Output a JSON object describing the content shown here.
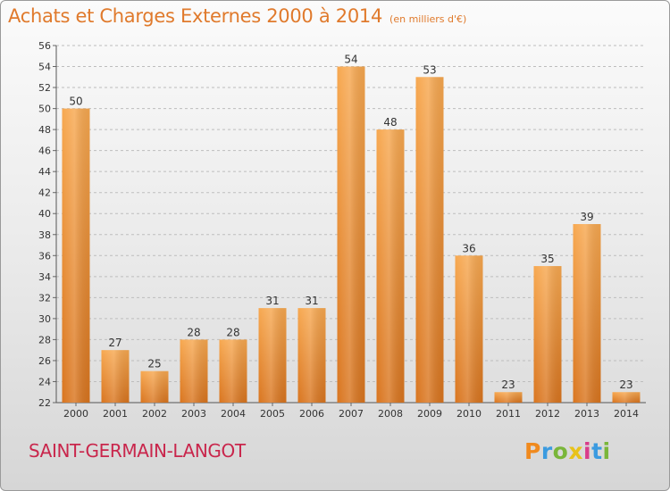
{
  "title": {
    "main": "Achats et Charges Externes 2000 à 2014",
    "sub": "(en milliers d'€)"
  },
  "commune": "SAINT-GERMAIN-LANGOT",
  "logo": {
    "text": "Proxiti",
    "colors": [
      "#f08a1e",
      "#3b9be0",
      "#7ab63a",
      "#e8c21a",
      "#d93c8a",
      "#3b9be0",
      "#7ab63a"
    ]
  },
  "colors": {
    "bar_light": "#f7a850",
    "bar_dark": "#d9751f",
    "title": "#e07a2c",
    "commune": "#c9264c",
    "grid": "#bdbdbd"
  },
  "chart_data": {
    "type": "bar",
    "categories": [
      "2000",
      "2001",
      "2002",
      "2003",
      "2004",
      "2005",
      "2006",
      "2007",
      "2008",
      "2009",
      "2010",
      "2011",
      "2012",
      "2013",
      "2014"
    ],
    "values": [
      50,
      27,
      25,
      28,
      28,
      31,
      31,
      54,
      48,
      53,
      36,
      23,
      35,
      39,
      23
    ],
    "ylim": [
      22,
      56
    ],
    "ytick_step": 2,
    "grid": true,
    "data_labels": true
  }
}
